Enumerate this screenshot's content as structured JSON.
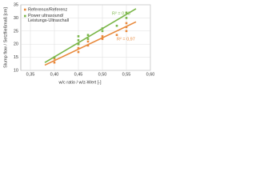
{
  "chart_data": {
    "type": "scatter",
    "xlabel": "w/c ratio / w/z-Wert [-]",
    "ylabel": "Slump flow / Setzfließmaß [cm]",
    "xlim": [
      0.33,
      0.6
    ],
    "xticks": [
      {
        "value": 0.35,
        "label": "0,35"
      },
      {
        "value": 0.4,
        "label": "0,40"
      },
      {
        "value": 0.45,
        "label": "0,45"
      },
      {
        "value": 0.5,
        "label": "0,50"
      },
      {
        "value": 0.55,
        "label": "0,55"
      },
      {
        "value": 0.6,
        "label": "0,60"
      }
    ],
    "ylim": [
      10,
      35
    ],
    "yticks": [
      10,
      15,
      20,
      25,
      30,
      35
    ],
    "grid": true,
    "legend": "upper left",
    "series": [
      {
        "name": "Reference/Referenz",
        "color": "#e8883a",
        "x": [
          0.4,
          0.4,
          0.45,
          0.45,
          0.45,
          0.47,
          0.47,
          0.5,
          0.5,
          0.53,
          0.55,
          0.55,
          0.55
        ],
        "values": [
          13,
          14.5,
          17,
          18.5,
          20,
          19.5,
          21,
          22,
          23,
          23.5,
          25,
          26.5,
          28
        ],
        "r2_label": "R² = 0,97",
        "trend": {
          "x": [
            0.38,
            0.57
          ],
          "values": [
            12,
            28.5
          ]
        }
      },
      {
        "name": "Power ultrasound/ Leistungs-Ultraschall",
        "color": "#7ab648",
        "x": [
          0.4,
          0.45,
          0.45,
          0.45,
          0.47,
          0.47,
          0.5,
          0.5,
          0.53,
          0.55,
          0.55
        ],
        "values": [
          15,
          20,
          21.5,
          23,
          22,
          23.5,
          25,
          26,
          27,
          30,
          32
        ],
        "r2_label": "R² = 0,93",
        "trend": {
          "x": [
            0.38,
            0.57
          ],
          "values": [
            13,
            33.5
          ]
        }
      }
    ]
  }
}
